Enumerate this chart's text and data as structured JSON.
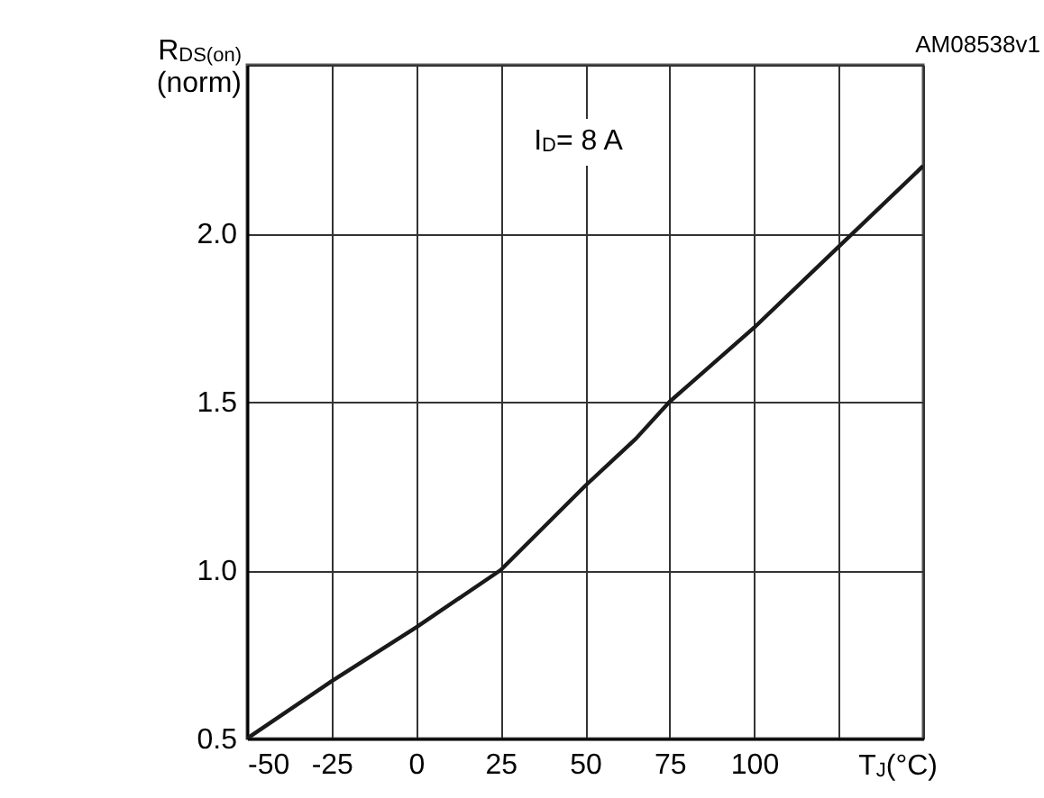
{
  "chart_data": {
    "type": "line",
    "ylabel": "R$_{DS(on)}$\n(norm)",
    "xlabel": "T$_{J}$(°C)",
    "annotations": [
      "AM08538v1",
      "I$_{D}$= 8 A"
    ],
    "x": [
      -50,
      -25,
      0,
      25,
      50,
      65,
      75,
      100,
      125,
      150
    ],
    "series": [
      {
        "color": "#1a1a1a",
        "values": [
          0.5,
          0.67,
          0.83,
          1.0,
          1.25,
          1.39,
          1.5,
          1.72,
          1.96,
          2.2
        ]
      }
    ],
    "xlim": [
      -50,
      150
    ],
    "xticks": [
      -50,
      -25,
      0,
      25,
      50,
      75,
      100,
      {
        "value": 125,
        "label": null
      },
      {
        "value": 150,
        "label": null
      }
    ],
    "ylim": [
      0.5,
      2.5
    ],
    "yticks": [
      0.5,
      {
        "value": 1,
        "label": "1.0"
      },
      1.5,
      {
        "value": 2,
        "label": "2.0"
      },
      {
        "value": 2.5,
        "label": null
      }
    ],
    "grid": true,
    "marker": "none",
    "line_style": "solid"
  }
}
